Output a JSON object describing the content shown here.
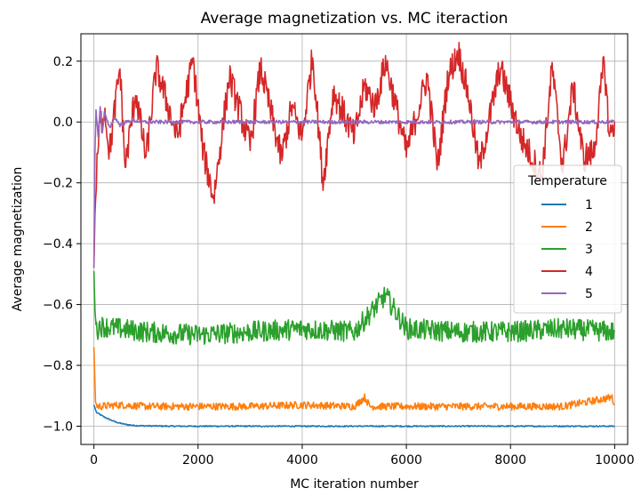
{
  "chart_data": {
    "type": "line",
    "title": "Average magnetization vs. MC iteraction",
    "xlabel": "MC iteration number",
    "ylabel": "Average magnetization",
    "xlim": [
      -250,
      10250
    ],
    "ylim": [
      -1.06,
      0.29
    ],
    "xticks": [
      0,
      2000,
      4000,
      6000,
      8000,
      10000
    ],
    "xtick_labels": [
      "0",
      "2000",
      "4000",
      "6000",
      "8000",
      "10000"
    ],
    "yticks": [
      -1.0,
      -0.8,
      -0.6,
      -0.4,
      -0.2,
      0.0,
      0.2
    ],
    "ytick_labels": [
      "−1.0",
      "−0.8",
      "−0.6",
      "−0.4",
      "−0.2",
      "0.0",
      "0.2"
    ],
    "grid": true,
    "legend": {
      "title": "Temperature",
      "placement": "center-right"
    },
    "series": [
      {
        "name": "1",
        "color": "#1f77b4",
        "x": [
          0,
          50,
          100,
          200,
          300,
          400,
          500,
          600,
          700,
          800,
          1000,
          1500,
          2000,
          4000,
          6000,
          8000,
          10000
        ],
        "y": [
          -0.93,
          -0.955,
          -0.96,
          -0.97,
          -0.978,
          -0.985,
          -0.99,
          -0.994,
          -0.996,
          -0.998,
          -0.999,
          -1.0,
          -1.0,
          -1.0,
          -1.0,
          -1.0,
          -1.0
        ]
      },
      {
        "name": "2",
        "color": "#ff7f0e",
        "x": [
          0,
          30,
          60,
          100,
          500,
          1000,
          2000,
          3000,
          4000,
          5000,
          5200,
          5300,
          6000,
          7000,
          8000,
          9000,
          9950,
          10000
        ],
        "y": [
          -0.74,
          -0.92,
          -0.935,
          -0.935,
          -0.93,
          -0.935,
          -0.935,
          -0.935,
          -0.93,
          -0.935,
          -0.905,
          -0.935,
          -0.935,
          -0.935,
          -0.935,
          -0.935,
          -0.905,
          -0.93
        ]
      },
      {
        "name": "3",
        "color": "#2ca02c",
        "x": [
          0,
          20,
          50,
          100,
          500,
          1000,
          2000,
          3000,
          4000,
          5000,
          5600,
          6000,
          7000,
          8000,
          9000,
          10000
        ],
        "y": [
          -0.49,
          -0.62,
          -0.69,
          -0.67,
          -0.68,
          -0.69,
          -0.7,
          -0.69,
          -0.68,
          -0.69,
          -0.57,
          -0.68,
          -0.69,
          -0.69,
          -0.68,
          -0.69
        ]
      },
      {
        "name": "4",
        "color": "#d62728",
        "x": [
          0,
          20,
          60,
          100,
          200,
          300,
          500,
          600,
          800,
          1000,
          1200,
          1600,
          1900,
          2100,
          2300,
          2600,
          3000,
          3200,
          3600,
          3800,
          4000,
          4200,
          4400,
          4600,
          5000,
          5200,
          5400,
          5600,
          6000,
          6400,
          6600,
          6800,
          7000,
          7200,
          7400,
          7800,
          8200,
          8600,
          8800,
          9000,
          9200,
          9400,
          9600,
          9800,
          9900,
          10000
        ],
        "y": [
          -0.48,
          -0.3,
          -0.15,
          -0.03,
          0.05,
          -0.1,
          0.18,
          -0.15,
          0.1,
          -0.12,
          0.18,
          -0.05,
          0.2,
          -0.1,
          -0.25,
          0.15,
          -0.08,
          0.18,
          -0.12,
          0.05,
          -0.05,
          0.22,
          -0.2,
          0.1,
          -0.05,
          0.12,
          0.05,
          0.2,
          -0.1,
          0.15,
          -0.15,
          0.15,
          0.23,
          0.08,
          -0.15,
          0.18,
          -0.05,
          -0.18,
          0.18,
          -0.15,
          0.12,
          -0.12,
          -0.1,
          0.2,
          -0.05,
          0.0
        ]
      },
      {
        "name": "5",
        "color": "#9467bd",
        "x": [
          0,
          20,
          40,
          80,
          120,
          160,
          200,
          300,
          400,
          500,
          700,
          1000,
          2000,
          4000,
          6000,
          8000,
          10000
        ],
        "y": [
          -0.48,
          -0.1,
          0.04,
          -0.05,
          0.05,
          -0.04,
          0.03,
          -0.02,
          0.015,
          -0.01,
          0.005,
          0.0,
          0.0,
          0.0,
          0.0,
          0.0,
          0.0
        ]
      }
    ]
  }
}
